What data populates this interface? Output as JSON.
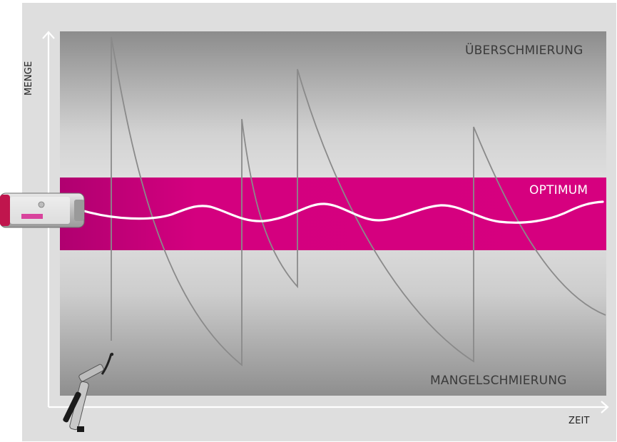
{
  "labels": {
    "over_lubrication": "ÜBERSCHMIERUNG",
    "optimum": "OPTIMUM",
    "under_lubrication": "MANGELSCHMIERUNG",
    "x_axis": "ZEIT",
    "y_axis": "MENGE"
  },
  "colors": {
    "background": "#dedede",
    "optimum_band": "#d4007f",
    "manual_curve": "#8a8a8a",
    "automatic_curve": "#ffffff",
    "axis": "#ffffff"
  },
  "icons": [
    "lubricator-icon",
    "grease-gun-icon"
  ]
}
